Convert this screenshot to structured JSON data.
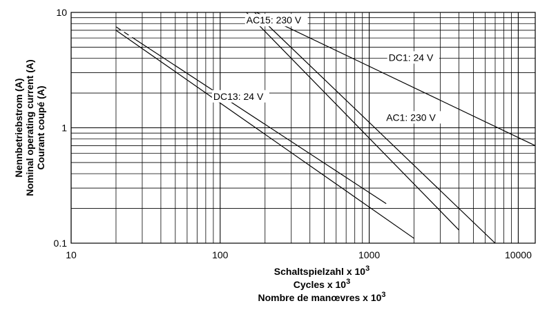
{
  "chart_data": {
    "type": "line",
    "x_scale": "log",
    "y_scale": "log",
    "xlim": [
      10,
      13000
    ],
    "ylim": [
      0.1,
      10
    ],
    "grid": true,
    "x_ticks": [
      {
        "value": 10,
        "label": "10"
      },
      {
        "value": 100,
        "label": "100"
      },
      {
        "value": 1000,
        "label": "1000"
      },
      {
        "value": 10000,
        "label": "10000"
      }
    ],
    "y_ticks": [
      {
        "value": 0.1,
        "label": "0.1"
      },
      {
        "value": 1,
        "label": "1"
      },
      {
        "value": 10,
        "label": "10"
      }
    ],
    "ylabel_lines": [
      "Nennbetriebstrom (A)",
      "Nominal operating current (A)",
      "Courant coupé (A)"
    ],
    "xlabel_lines": [
      {
        "text": "Schaltspielzahl x 10",
        "sup": "3"
      },
      {
        "text": "Cycles x 10",
        "sup": "3"
      },
      {
        "text": "Nombre de manœvres x 10",
        "sup": "3"
      }
    ],
    "series": [
      {
        "name": "DC13: 24 V",
        "x": [
          20,
          1300
        ],
        "y": [
          7.5,
          0.22
        ],
        "dashed_segment_x": [
          20,
          27
        ],
        "label_at": [
          90,
          1.75
        ]
      },
      {
        "name": "AC15: 230 V",
        "x": [
          20,
          2000
        ],
        "y": [
          7.0,
          0.11
        ],
        "label_at": [
          150,
          8.0
        ]
      },
      {
        "name": "DC1: 24 V",
        "x": [
          175,
          13000
        ],
        "y": [
          10,
          0.7
        ],
        "label_at": [
          1350,
          3.8
        ]
      },
      {
        "name": "AC1: 230 V",
        "x": [
          150,
          4000
        ],
        "y": [
          10,
          0.13
        ],
        "label_at": [
          1300,
          1.15
        ]
      },
      {
        "name": "",
        "x": [
          170,
          7000
        ],
        "y": [
          10,
          0.1
        ]
      }
    ]
  }
}
